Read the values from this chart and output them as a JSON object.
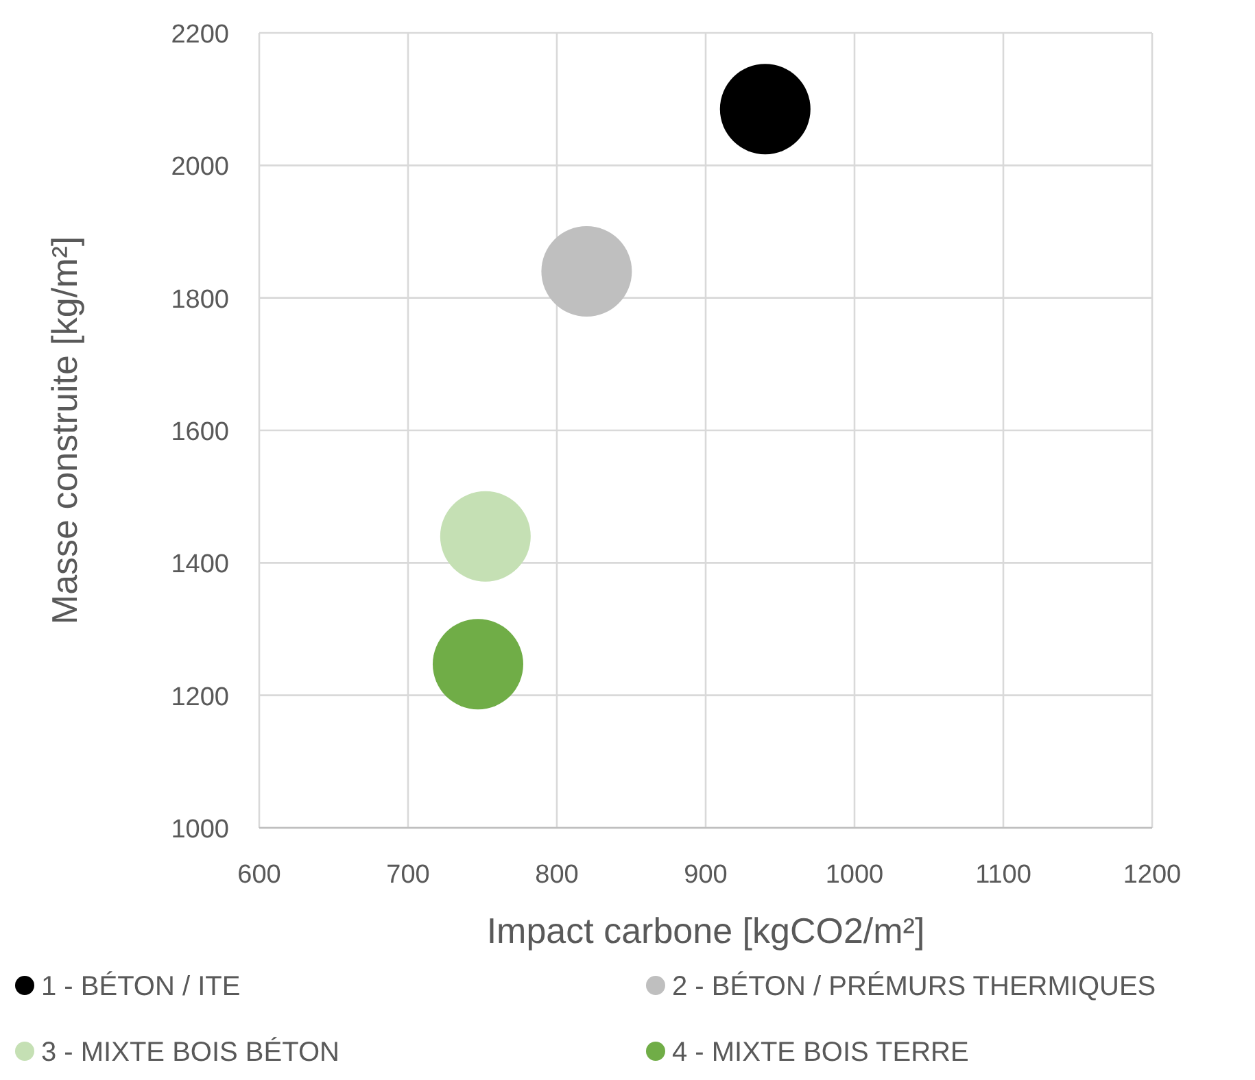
{
  "chart_data": {
    "type": "bubble",
    "xlabel": "Impact carbone [kgCO2/m²]",
    "ylabel": "Masse construite [kg/m²]",
    "xlim": [
      600,
      1200
    ],
    "xticks": [
      600,
      700,
      800,
      900,
      1000,
      1100,
      1200
    ],
    "ylim": [
      1000,
      2200
    ],
    "yticks": [
      1000,
      1200,
      1400,
      1600,
      1800,
      2000,
      2200
    ],
    "grid": true,
    "legend": "bottom",
    "marker": "circle",
    "series": [
      {
        "name": "1 - BÉTON / ITE",
        "color": "#000000",
        "x": [
          940
        ],
        "values": [
          2085
        ],
        "sizes": [
          1
        ]
      },
      {
        "name": "2 - BÉTON / PRÉMURS THERMIQUES",
        "color": "#bfbfbf",
        "x": [
          820
        ],
        "values": [
          1840
        ],
        "sizes": [
          1
        ]
      },
      {
        "name": "3 - MIXTE BOIS BÉTON",
        "color": "#c5e0b4",
        "x": [
          752
        ],
        "values": [
          1440
        ],
        "sizes": [
          1
        ]
      },
      {
        "name": "4 - MIXTE BOIS TERRE",
        "color": "#70ad47",
        "x": [
          747
        ],
        "values": [
          1247
        ],
        "sizes": [
          1
        ]
      }
    ]
  }
}
